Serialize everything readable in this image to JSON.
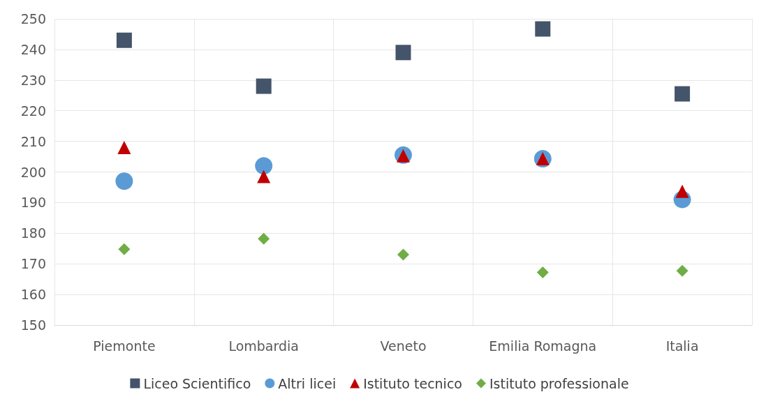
{
  "chart_data": {
    "type": "scatter",
    "categories": [
      "Piemonte",
      "Lombardia",
      "Veneto",
      "Emilia Romagna",
      "Italia"
    ],
    "series": [
      {
        "name": "Liceo Scientifico",
        "color": "#44546a",
        "marker": "square",
        "values": [
          243,
          228,
          239,
          246.7,
          225.5
        ]
      },
      {
        "name": "Altri licei",
        "color": "#5b9bd5",
        "marker": "circle",
        "values": [
          197,
          202,
          205.5,
          204.3,
          191
        ]
      },
      {
        "name": "Istituto tecnico",
        "color": "#c00000",
        "marker": "triangle",
        "values": [
          208,
          198.5,
          205.3,
          204.3,
          193.7
        ]
      },
      {
        "name": "Istituto professionale",
        "color": "#70ad47",
        "marker": "diamond",
        "values": [
          174.8,
          178.2,
          173,
          167.2,
          167.7
        ]
      }
    ],
    "ylim": [
      150,
      250
    ],
    "yticks": [
      150,
      160,
      170,
      180,
      190,
      200,
      210,
      220,
      230,
      240,
      250
    ],
    "grid": true,
    "legend": "bottom"
  }
}
